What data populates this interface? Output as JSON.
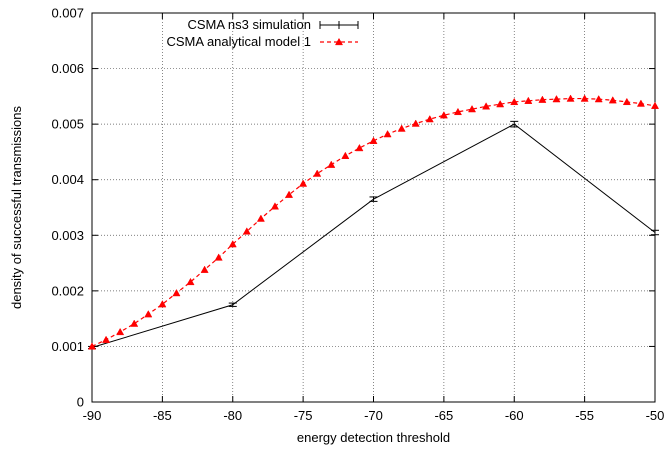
{
  "chart_data": {
    "type": "line",
    "title": "",
    "xlabel": "energy detection threshold",
    "ylabel": "density of successful transmissions",
    "xlim": [
      -90,
      -50
    ],
    "ylim": [
      0,
      0.007
    ],
    "x_ticks": [
      -90,
      -85,
      -80,
      -75,
      -70,
      -65,
      -60,
      -55,
      -50
    ],
    "x_tick_labels": [
      "-90",
      "-85",
      "-80",
      "-75",
      "-70",
      "-65",
      "-60",
      "-55",
      "-50"
    ],
    "y_ticks": [
      0,
      0.001,
      0.002,
      0.003,
      0.004,
      0.005,
      0.006,
      0.007
    ],
    "y_tick_labels": [
      "0",
      "0.001",
      "0.002",
      "0.003",
      "0.004",
      "0.005",
      "0.006",
      "0.007"
    ],
    "grid": true,
    "legend_position": "top-left",
    "series": [
      {
        "name": "CSMA ns3 simulation",
        "style": "solid-errorbars",
        "color": "#000000",
        "x": [
          -90,
          -80,
          -70,
          -60,
          -50
        ],
        "values": [
          0.00098,
          0.00175,
          0.00365,
          0.005,
          0.00305
        ],
        "error": [
          2e-05,
          3e-05,
          4e-05,
          5e-05,
          4e-05
        ]
      },
      {
        "name": "CSMA analytical model 1",
        "style": "dashed-triangles",
        "color": "#ff0000",
        "x": [
          -90,
          -89,
          -88,
          -87,
          -86,
          -85,
          -84,
          -83,
          -82,
          -81,
          -80,
          -79,
          -78,
          -77,
          -76,
          -75,
          -74,
          -73,
          -72,
          -71,
          -70,
          -69,
          -68,
          -67,
          -66,
          -65,
          -64,
          -63,
          -62,
          -61,
          -60,
          -59,
          -58,
          -57,
          -56,
          -55,
          -54,
          -53,
          -52,
          -51,
          -50
        ],
        "values": [
          0.001,
          0.00112,
          0.00126,
          0.00141,
          0.00158,
          0.00176,
          0.00196,
          0.00216,
          0.00238,
          0.0026,
          0.00284,
          0.00307,
          0.0033,
          0.00352,
          0.00373,
          0.00393,
          0.00411,
          0.00427,
          0.00443,
          0.00457,
          0.0047,
          0.00482,
          0.00492,
          0.00501,
          0.00509,
          0.00516,
          0.00522,
          0.00527,
          0.00532,
          0.00536,
          0.0054,
          0.00542,
          0.00544,
          0.00545,
          0.00546,
          0.00546,
          0.00545,
          0.00543,
          0.0054,
          0.00537,
          0.00533
        ]
      }
    ]
  }
}
